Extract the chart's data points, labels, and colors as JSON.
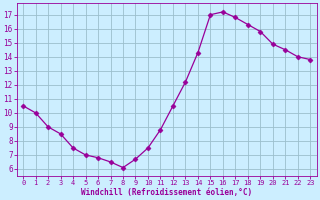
{
  "x": [
    0,
    1,
    2,
    3,
    4,
    5,
    6,
    7,
    8,
    9,
    10,
    11,
    12,
    13,
    14,
    15,
    16,
    17,
    18,
    19,
    20,
    21,
    22,
    23
  ],
  "y": [
    10.5,
    10.0,
    9.0,
    8.5,
    7.5,
    7.0,
    6.8,
    6.5,
    6.1,
    6.7,
    7.5,
    8.8,
    10.5,
    12.2,
    14.3,
    17.0,
    17.2,
    16.8,
    16.3,
    15.8,
    14.9,
    14.5,
    14.0,
    13.8
  ],
  "line_color": "#990099",
  "marker": "D",
  "marker_size": 2.5,
  "bg_color": "#cceeff",
  "grid_color": "#9bbfcc",
  "xlabel": "Windchill (Refroidissement éolien,°C)",
  "xlabel_color": "#990099",
  "tick_color": "#990099",
  "ylim": [
    5.5,
    17.8
  ],
  "xlim": [
    -0.5,
    23.5
  ],
  "yticks": [
    6,
    7,
    8,
    9,
    10,
    11,
    12,
    13,
    14,
    15,
    16,
    17
  ],
  "xticks": [
    0,
    1,
    2,
    3,
    4,
    5,
    6,
    7,
    8,
    9,
    10,
    11,
    12,
    13,
    14,
    15,
    16,
    17,
    18,
    19,
    20,
    21,
    22,
    23
  ],
  "figsize": [
    3.2,
    2.0
  ],
  "dpi": 100
}
